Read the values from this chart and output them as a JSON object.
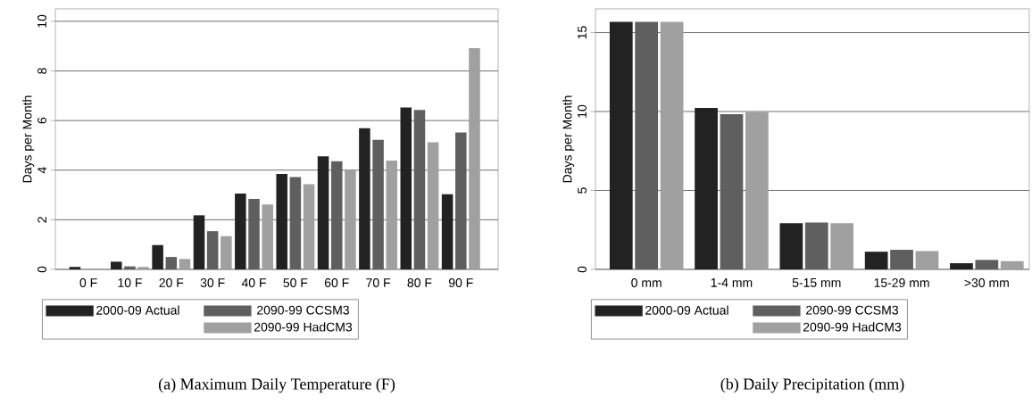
{
  "chart_data": [
    {
      "type": "bar",
      "title": "(a)  Maximum Daily Temperature (F)",
      "ylabel": "Days per Month",
      "categories": [
        "0 F",
        "10 F",
        "20 F",
        "30 F",
        "40 F",
        "50 F",
        "60 F",
        "70 F",
        "80 F",
        "90 F"
      ],
      "series": [
        {
          "name": "2000-09 Actual",
          "color": "#222222",
          "values": [
            0.1,
            0.31,
            0.98,
            2.18,
            3.06,
            3.85,
            4.56,
            5.69,
            6.53,
            3.03
          ]
        },
        {
          "name": "2090-99 CCSM3",
          "color": "#5f5f5f",
          "values": [
            null,
            0.12,
            0.5,
            1.54,
            2.84,
            3.72,
            4.36,
            5.22,
            6.43,
            5.52
          ]
        },
        {
          "name": "2090-99 HadCM3",
          "color": "#a0a0a0",
          "values": [
            0.02,
            0.1,
            0.42,
            1.34,
            2.62,
            3.43,
            4.0,
            4.39,
            5.12,
            8.92
          ]
        }
      ],
      "ylim": [
        0,
        10.5
      ],
      "yticks": [
        0,
        2,
        4,
        6,
        8,
        10
      ],
      "grid": "y",
      "legend": "bottom"
    },
    {
      "type": "bar",
      "title": "(b)  Daily Precipitation (mm)",
      "ylabel": "Days per Month",
      "categories": [
        "0 mm",
        "1-4 mm",
        "5-15 mm",
        "15-29 mm",
        ">30 mm"
      ],
      "series": [
        {
          "name": "2000-09 Actual",
          "color": "#222222",
          "values": [
            15.68,
            10.23,
            2.93,
            1.12,
            0.39
          ]
        },
        {
          "name": "2090-99 CCSM3",
          "color": "#5f5f5f",
          "values": [
            15.68,
            9.83,
            2.97,
            1.24,
            0.6
          ]
        },
        {
          "name": "2090-99 HadCM3",
          "color": "#a0a0a0",
          "values": [
            15.68,
            9.98,
            2.93,
            1.16,
            0.52
          ]
        }
      ],
      "ylim": [
        0,
        16.5
      ],
      "yticks": [
        0,
        5,
        10,
        15
      ],
      "grid": "y",
      "legend": "bottom"
    }
  ]
}
